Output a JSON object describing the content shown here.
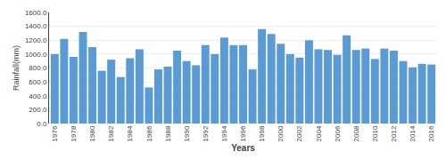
{
  "chart_data": {
    "type": "bar",
    "categories": [
      "1976",
      null,
      "1978",
      null,
      "1980",
      null,
      "1982",
      null,
      "1984",
      null,
      "1986",
      null,
      "1988",
      null,
      "1990",
      null,
      "1992",
      null,
      "1994",
      null,
      "1996",
      null,
      "1998",
      null,
      "2000",
      null,
      "2002",
      null,
      "2004",
      null,
      "2006",
      null,
      "2008",
      null,
      "2010",
      null,
      "2012",
      null,
      "2014",
      null,
      "2016"
    ],
    "values": [
      1000,
      1220,
      960,
      1320,
      1100,
      760,
      920,
      670,
      940,
      1070,
      520,
      780,
      820,
      1050,
      900,
      840,
      1130,
      1000,
      1240,
      1130,
      1130,
      780,
      1360,
      1290,
      1150,
      1000,
      950,
      1200,
      1070,
      1060,
      990,
      1270,
      1060,
      1080,
      930,
      1080,
      1050,
      900,
      810,
      860,
      850
    ],
    "color": "#5b9bd5",
    "xlabel": "Years",
    "ylabel": "Rainfall(mm)",
    "ylim": [
      0,
      1600
    ],
    "yticks": [
      {
        "value": 0,
        "label": "0.0"
      },
      {
        "value": 200,
        "label": "200.0"
      },
      {
        "value": 400,
        "label": "400.0"
      },
      {
        "value": 600,
        "label": "600.0"
      },
      {
        "value": 800,
        "label": "800.0"
      },
      {
        "value": 1000,
        "label": "1000.0"
      },
      {
        "value": 1200,
        "label": "1200.0"
      },
      {
        "value": 1400,
        "label": "1400.0"
      },
      {
        "value": 1600,
        "label": "1600.0"
      }
    ],
    "grid": true
  }
}
